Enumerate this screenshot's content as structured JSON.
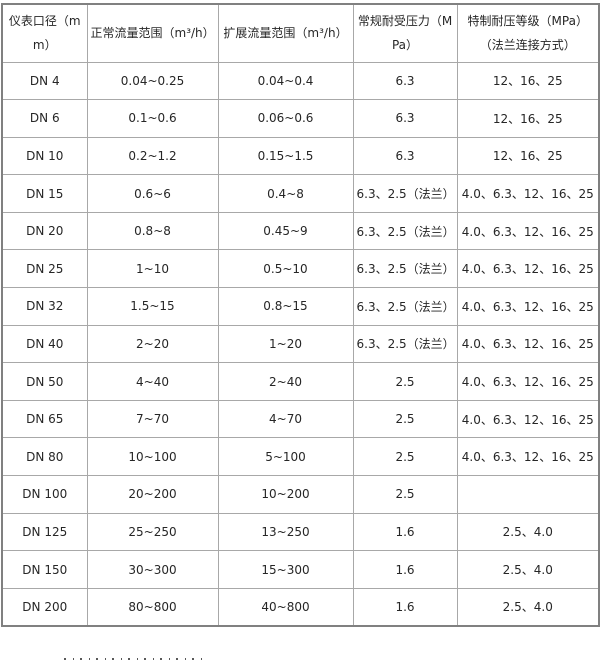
{
  "table": {
    "text_color": "#262626",
    "border_color_outer": "#808080",
    "border_color_inner": "#a8a8a8",
    "headers": [
      "仪表口径（mm）",
      "正常流量范围（m³/h）",
      "扩展流量范围（m³/h）",
      "常规耐受压力（MPa）",
      "特制耐压等级（MPa）（法兰连接方式）"
    ],
    "rows": [
      [
        "DN 4",
        "0.04~0.25",
        "0.04~0.4",
        "6.3",
        "12、16、25"
      ],
      [
        "DN 6",
        "0.1~0.6",
        "0.06~0.6",
        "6.3",
        "12、16、25"
      ],
      [
        "DN 10",
        "0.2~1.2",
        "0.15~1.5",
        "6.3",
        "12、16、25"
      ],
      [
        "DN 15",
        "0.6~6",
        "0.4~8",
        "6.3、2.5（法兰）",
        "4.0、6.3、12、16、25"
      ],
      [
        "DN 20",
        "0.8~8",
        "0.45~9",
        "6.3、2.5（法兰）",
        "4.0、6.3、12、16、25"
      ],
      [
        "DN 25",
        "1~10",
        "0.5~10",
        "6.3、2.5（法兰）",
        "4.0、6.3、12、16、25"
      ],
      [
        "DN 32",
        "1.5~15",
        "0.8~15",
        "6.3、2.5（法兰）",
        "4.0、6.3、12、16、25"
      ],
      [
        "DN 40",
        "2~20",
        "1~20",
        "6.3、2.5（法兰）",
        "4.0、6.3、12、16、25"
      ],
      [
        "DN 50",
        "4~40",
        "2~40",
        "2.5",
        "4.0、6.3、12、16、25"
      ],
      [
        "DN 65",
        "7~70",
        "4~70",
        "2.5",
        "4.0、6.3、12、16、25"
      ],
      [
        "DN 80",
        "10~100",
        "5~100",
        "2.5",
        "4.0、6.3、12、16、25"
      ],
      [
        "DN 100",
        "20~200",
        "10~200",
        "2.5",
        ""
      ],
      [
        "DN 125",
        "25~250",
        "13~250",
        "1.6",
        "2.5、4.0"
      ],
      [
        "DN 150",
        "30~300",
        "15~300",
        "1.6",
        "2.5、4.0"
      ],
      [
        "DN 200",
        "80~800",
        "40~800",
        "1.6",
        "2.5、4.0"
      ]
    ]
  }
}
